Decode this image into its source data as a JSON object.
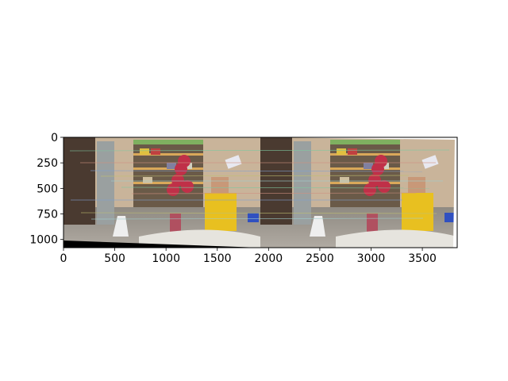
{
  "chart_data": {
    "type": "image",
    "title": "",
    "xlabel": "",
    "ylabel": "",
    "xlim": [
      0,
      3840
    ],
    "ylim": [
      1080,
      0
    ],
    "y_inverted": true,
    "xticks": [
      0,
      500,
      1000,
      1500,
      2000,
      2500,
      3000,
      3500
    ],
    "yticks": [
      0,
      250,
      500,
      750,
      1000
    ],
    "content": "two stitched rectified photos of a cluttered room (shelves, red flowers, yellow box, white figurine, rolled mat) side by side with colored keypoint match lines across",
    "grid": false,
    "legend": "none",
    "colors": {
      "wall": "#c9b49a",
      "floor": "#9a948c",
      "door": "#4a3a30",
      "shelf": "#d9a85a",
      "flower": "#c03048",
      "yellow_box": "#e8c020",
      "mat": "#e6e4de",
      "match_lines": [
        "#7fc8a0",
        "#d09080",
        "#80a0d0",
        "#c0c070",
        "#a0d0d0"
      ]
    }
  }
}
